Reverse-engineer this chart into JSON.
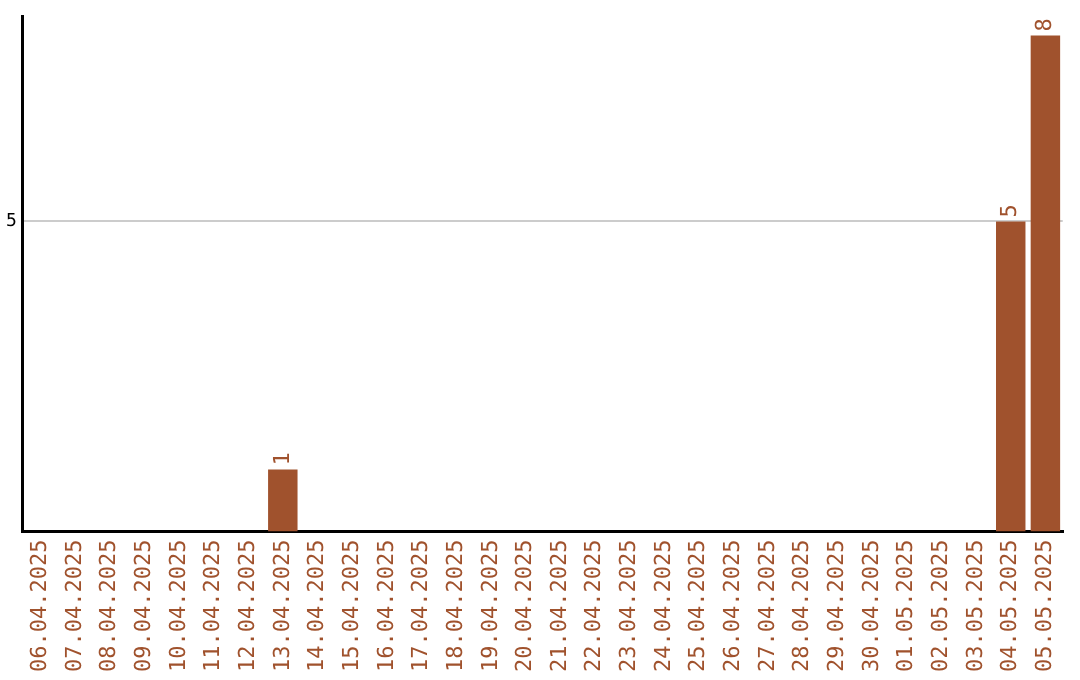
{
  "chart_data": {
    "type": "bar",
    "categories": [
      "06.04.2025",
      "07.04.2025",
      "08.04.2025",
      "09.04.2025",
      "10.04.2025",
      "11.04.2025",
      "12.04.2025",
      "13.04.2025",
      "14.04.2025",
      "15.04.2025",
      "16.04.2025",
      "17.04.2025",
      "18.04.2025",
      "19.04.2025",
      "20.04.2025",
      "21.04.2025",
      "22.04.2025",
      "23.04.2025",
      "24.04.2025",
      "25.04.2025",
      "26.04.2025",
      "27.04.2025",
      "28.04.2025",
      "29.04.2025",
      "30.04.2025",
      "01.05.2025",
      "02.05.2025",
      "03.05.2025",
      "04.05.2025",
      "05.05.2025"
    ],
    "values": [
      0,
      0,
      0,
      0,
      0,
      0,
      0,
      1,
      0,
      0,
      0,
      0,
      0,
      0,
      0,
      0,
      0,
      0,
      0,
      0,
      0,
      0,
      0,
      0,
      0,
      0,
      0,
      0,
      5,
      8
    ],
    "value_labels": [
      null,
      null,
      null,
      null,
      null,
      null,
      null,
      "1",
      null,
      null,
      null,
      null,
      null,
      null,
      null,
      null,
      null,
      null,
      null,
      null,
      null,
      null,
      null,
      null,
      null,
      null,
      null,
      null,
      "5",
      "8"
    ],
    "color": "#a0522d",
    "ylim": [
      0,
      8.3
    ],
    "yticks": [
      5
    ],
    "grid": "y",
    "legend": false
  }
}
